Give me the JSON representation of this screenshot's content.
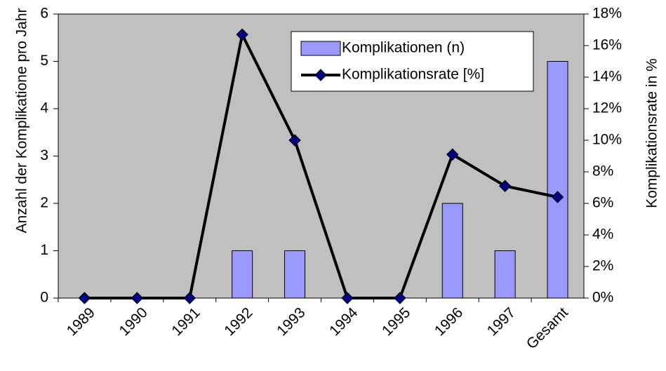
{
  "chart_data": {
    "type": "bar_line",
    "categories": [
      "1989",
      "1990",
      "1991",
      "1992",
      "1993",
      "1994",
      "1995",
      "1996",
      "1997",
      "Gesamt"
    ],
    "y_label": "Anzahl der Komplikatione pro Jahr",
    "y2_label": "Komplikationsrate in %",
    "series": [
      {
        "name": "Komplikationen (n)",
        "type": "bar",
        "color": "#9999ff",
        "values": [
          0,
          0,
          0,
          1,
          1,
          0,
          0,
          2,
          1,
          5
        ]
      },
      {
        "name": "Komplikationsrate [%]",
        "type": "line",
        "axis": "y2",
        "color": "#000000",
        "marker_color": "#000080",
        "values": [
          0,
          0,
          0,
          16.7,
          10,
          0,
          0,
          9.1,
          7.1,
          6.4
        ]
      }
    ],
    "ylim": [
      0,
      6
    ],
    "yticks": [
      0,
      1,
      2,
      3,
      4,
      5,
      6
    ],
    "y2lim": [
      0,
      18
    ],
    "y2ticks": [
      {
        "value": 0,
        "label": "0%"
      },
      {
        "value": 2,
        "label": "2%"
      },
      {
        "value": 4,
        "label": "4%"
      },
      {
        "value": 6,
        "label": "6%"
      },
      {
        "value": 8,
        "label": "8%"
      },
      {
        "value": 10,
        "label": "10%"
      },
      {
        "value": 12,
        "label": "12%"
      },
      {
        "value": 14,
        "label": "14%"
      },
      {
        "value": 16,
        "label": "16%"
      },
      {
        "value": 18,
        "label": "18%"
      }
    ],
    "plot_background": "#c0c0c0",
    "legend": "upper-right"
  }
}
